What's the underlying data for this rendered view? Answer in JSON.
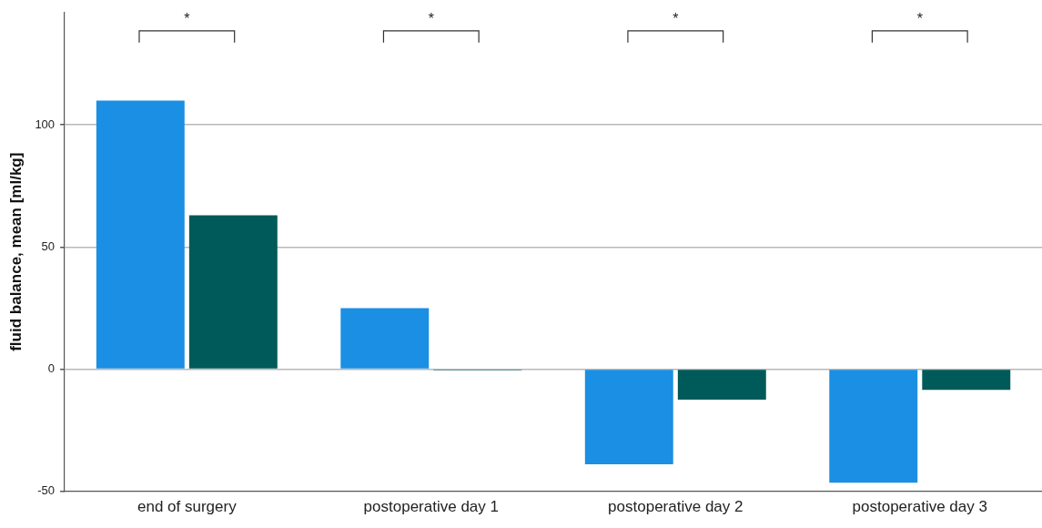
{
  "chart_data": {
    "type": "bar",
    "ylabel": "fluid balance, mean [ml/kg]",
    "categories": [
      "end of surgery",
      "postoperative day 1",
      "postoperative day 2",
      "postoperative day 3"
    ],
    "series": [
      {
        "color": "#1a8fe3",
        "values": [
          110,
          25,
          -39,
          -46.5
        ]
      },
      {
        "color": "#005a5a",
        "values": [
          63,
          -0.5,
          -12.5,
          -8.5
        ]
      }
    ],
    "ylim": [
      -50,
      146
    ],
    "yticks": [
      -50,
      0,
      50,
      100
    ],
    "grid": "y",
    "legend": false,
    "annotations": [
      "*",
      "*",
      "*",
      "*"
    ]
  }
}
